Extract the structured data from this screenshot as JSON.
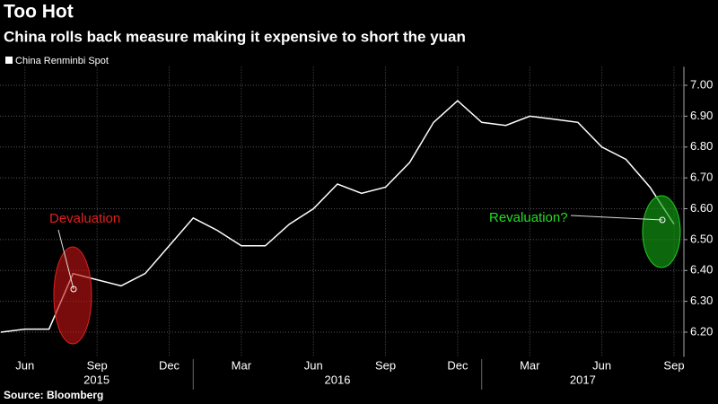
{
  "chart_data": {
    "type": "line",
    "title": "Too Hot",
    "subtitle": "China rolls back measure making it expensive to short the yuan",
    "source": "Source: Bloomberg",
    "x": [
      "2015-05",
      "2015-06",
      "2015-07",
      "2015-08",
      "2015-09",
      "2015-10",
      "2015-11",
      "2015-12",
      "2016-01",
      "2016-02",
      "2016-03",
      "2016-04",
      "2016-05",
      "2016-06",
      "2016-07",
      "2016-08",
      "2016-09",
      "2016-10",
      "2016-11",
      "2016-12",
      "2017-01",
      "2017-02",
      "2017-03",
      "2017-04",
      "2017-05",
      "2017-06",
      "2017-07",
      "2017-08",
      "2017-09"
    ],
    "series": [
      {
        "name": "China Renminbi Spot",
        "color": "#ffffff",
        "values": [
          6.2,
          6.21,
          6.21,
          6.39,
          6.37,
          6.35,
          6.39,
          6.48,
          6.57,
          6.53,
          6.48,
          6.48,
          6.55,
          6.6,
          6.68,
          6.65,
          6.67,
          6.75,
          6.88,
          6.95,
          6.88,
          6.87,
          6.9,
          6.89,
          6.88,
          6.8,
          6.76,
          6.67,
          6.55
        ]
      }
    ],
    "xlim": [
      "2015-05",
      "2017-09"
    ],
    "xticks": [
      {
        "value": "2015-06",
        "label": "Jun"
      },
      {
        "value": "2015-09",
        "label": "Sep"
      },
      {
        "value": "2015-12",
        "label": "Dec"
      },
      {
        "value": "2016-03",
        "label": "Mar"
      },
      {
        "value": "2016-06",
        "label": "Jun"
      },
      {
        "value": "2016-09",
        "label": "Sep"
      },
      {
        "value": "2016-12",
        "label": "Dec"
      },
      {
        "value": "2017-03",
        "label": "Mar"
      },
      {
        "value": "2017-06",
        "label": "Jun"
      },
      {
        "value": "2017-09",
        "label": "Sep"
      }
    ],
    "year_labels": [
      "2015",
      "2016",
      "2017"
    ],
    "ylim": [
      6.12,
      7.06
    ],
    "yticks": [
      {
        "value": 6.2,
        "label": "6.20"
      },
      {
        "value": 6.3,
        "label": "6.30"
      },
      {
        "value": 6.4,
        "label": "6.40"
      },
      {
        "value": 6.5,
        "label": "6.50"
      },
      {
        "value": 6.6,
        "label": "6.60"
      },
      {
        "value": 6.7,
        "label": "6.70"
      },
      {
        "value": 6.8,
        "label": "6.80"
      },
      {
        "value": 6.9,
        "label": "6.90"
      },
      {
        "value": 7.0,
        "label": "7.00"
      }
    ],
    "grid": true,
    "annotations": [
      "Devaluation",
      "Revaluation?"
    ]
  }
}
